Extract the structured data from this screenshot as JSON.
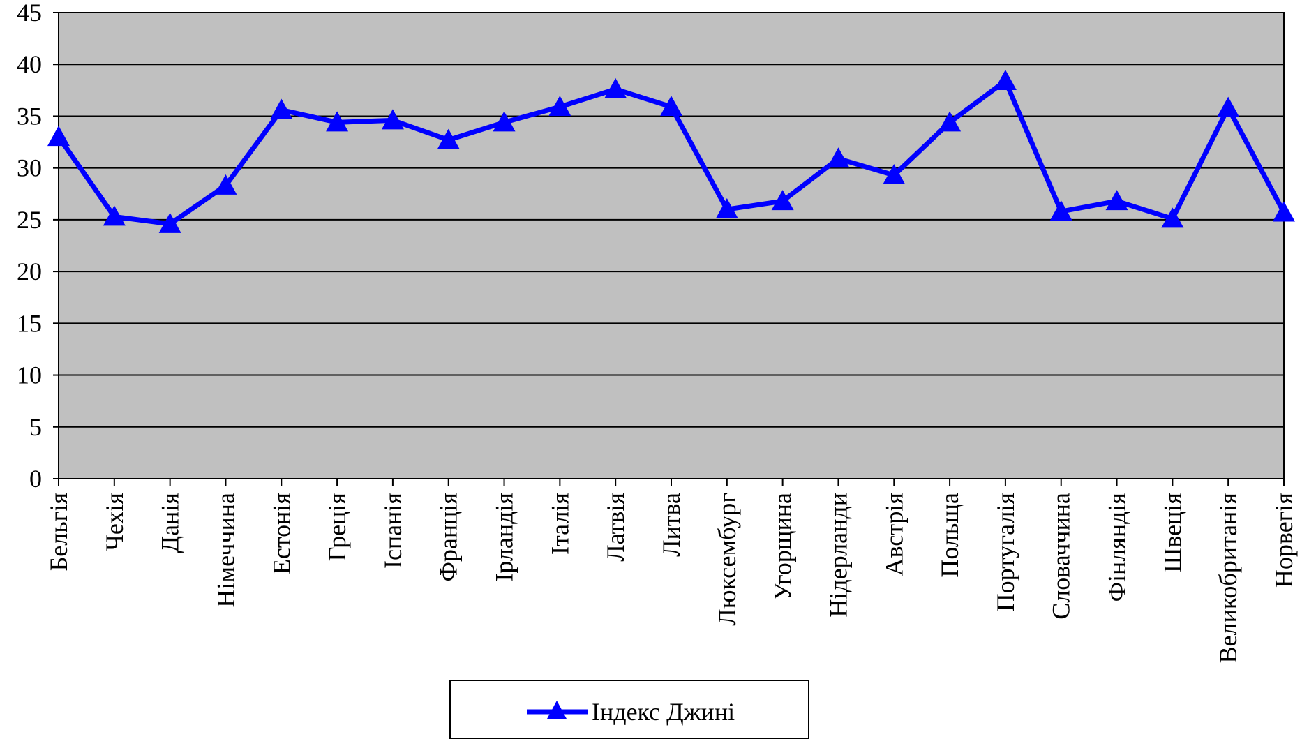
{
  "chart_data": {
    "type": "line",
    "title": "",
    "xlabel": "",
    "ylabel": "",
    "ylim": [
      0,
      45
    ],
    "yticks": [
      0,
      5,
      10,
      15,
      20,
      25,
      30,
      35,
      40,
      45
    ],
    "grid": true,
    "legend_position": "bottom-center",
    "categories": [
      "Бельгія",
      "Чехія",
      "Данія",
      "Німеччина",
      "Естонія",
      "Греція",
      "Іспанія",
      "Франція",
      "Ірландія",
      "Італія",
      "Латвія",
      "Литва",
      "Люксембург",
      "Угорщина",
      "Нідерланди",
      "Австрія",
      "Польща",
      "Португалія",
      "Словаччина",
      "Фінляндія",
      "Швеція",
      "Великобританія",
      "Норвегія"
    ],
    "series": [
      {
        "name": "Індекс Джині",
        "color": "#0000ff",
        "marker": "triangle",
        "values": [
          33,
          25.3,
          24.6,
          28.3,
          35.6,
          34.4,
          34.6,
          32.7,
          34.4,
          35.9,
          37.6,
          35.9,
          26,
          26.8,
          30.9,
          29.3,
          34.4,
          38.4,
          25.8,
          26.8,
          25.1,
          35.8,
          25.7
        ]
      }
    ],
    "colors": {
      "plot_background": "#c0c0c0",
      "gridline": "#000000",
      "series": "#0000ff"
    }
  }
}
